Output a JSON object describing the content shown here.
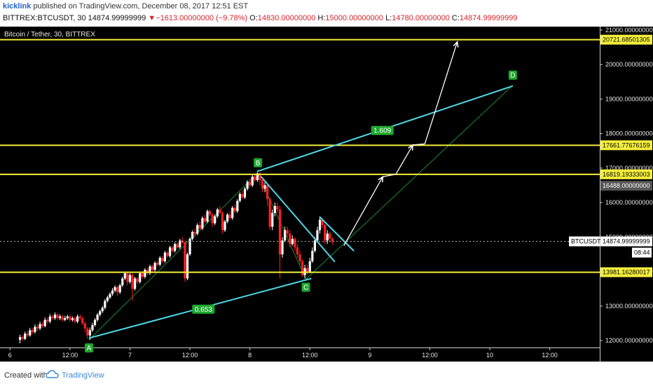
{
  "header": {
    "user": "kicklink",
    "publish_text": "published on TradingView.com, December 08, 2017 12:51 EST",
    "symbol": "BITTREX:BTCUSDT, 30",
    "last_price": "14874.99999999",
    "change_arrow": "▼",
    "change": "−1613.00000000 (−9.78%)",
    "o_label": "O:",
    "o_value": "14830.00000000",
    "h_label": "H:",
    "h_value": "15000.00000000",
    "l_label": "L:",
    "l_value": "14780.00000000",
    "c_label": "C:",
    "c_value": "14874.99999999"
  },
  "chart_data": {
    "type": "line",
    "title": "Bitcoin / Tether, 30, BITTREX",
    "xlabel": "",
    "ylabel": "",
    "ylim": [
      11800,
      21100
    ],
    "y_ticks": [
      12000,
      13000,
      14000,
      15000,
      16000,
      17000,
      18000,
      19000,
      20000,
      21000
    ],
    "y_tick_labels": [
      "12000.00000000",
      "13000.00000000",
      "14000.00000000",
      "15000.00000000",
      "16000.00000000",
      "17000.00000000",
      "18000.00000000",
      "19000.00000000",
      "20000.00000000",
      "21000.00000000"
    ],
    "x_ticks": [
      {
        "t": 0,
        "label": "6"
      },
      {
        "t": 12,
        "label": "12:00"
      },
      {
        "t": 24,
        "label": "7"
      },
      {
        "t": 36,
        "label": "12:00"
      },
      {
        "t": 48,
        "label": "8"
      },
      {
        "t": 60,
        "label": "12:00"
      },
      {
        "t": 72,
        "label": "9"
      },
      {
        "t": 84,
        "label": "12:00"
      },
      {
        "t": 96,
        "label": "10"
      },
      {
        "t": 108,
        "label": "12:00"
      }
    ],
    "xlim": [
      -2,
      118
    ],
    "colors": {
      "background": "#000000",
      "up": "#ffffff",
      "down": "#ff2020",
      "level": "#f4ee3c",
      "channel": "#4fd8e8",
      "pattern": "#1c8a2c",
      "arrow": "#ffffff",
      "label_bg": "#1ea82e"
    },
    "horizontal_levels": [
      {
        "value": 20721.68501305,
        "label": "20721.68501305"
      },
      {
        "value": 17661.77676159,
        "label": "17661.77676159"
      },
      {
        "value": 16819.19333003,
        "label": "16819.19333003"
      },
      {
        "value": 13981.16280017,
        "label": "13981.16280017"
      }
    ],
    "price_badges": [
      {
        "value": 16488,
        "label": "16488.00000000",
        "color": "#555555"
      },
      {
        "value": 14874.99999999,
        "label": "14874.99999999",
        "name": "BTCUSDT",
        "color": "#ffffff"
      }
    ],
    "countdown": "08:44",
    "points": [
      {
        "name": "A",
        "t": 15.8,
        "v": 12020
      },
      {
        "name": "B",
        "t": 49.6,
        "v": 16860
      },
      {
        "name": "C",
        "t": 59.2,
        "v": 13780
      },
      {
        "name": "D",
        "t": 100.6,
        "v": 19400
      }
    ],
    "channel_lines": [
      {
        "t1": 15.8,
        "v1": 12070,
        "t2": 60.3,
        "v2": 13800
      },
      {
        "t1": 49.4,
        "v1": 16900,
        "t2": 100.6,
        "v2": 19380
      },
      {
        "t1": 50.2,
        "v1": 16760,
        "t2": 65.0,
        "v2": 14280
      },
      {
        "t1": 62.0,
        "v1": 15580,
        "t2": 68.8,
        "v2": 14600
      }
    ],
    "pattern_lines": [
      {
        "t1": 15.8,
        "v1": 12020,
        "t2": 49.6,
        "v2": 16860
      },
      {
        "t1": 49.6,
        "v1": 16860,
        "t2": 59.2,
        "v2": 13780
      },
      {
        "t1": 59.2,
        "v1": 13780,
        "t2": 100.6,
        "v2": 19400
      }
    ],
    "fib_labels": [
      {
        "label": "0.653",
        "t": 38.7,
        "v": 12900
      },
      {
        "label": "1.609",
        "t": 74.5,
        "v": 18080
      }
    ],
    "arrow_path": [
      {
        "t": 66.8,
        "v": 14750
      },
      {
        "t": 74.6,
        "v": 16750
      },
      {
        "t": 77.2,
        "v": 16820
      },
      {
        "t": 80.6,
        "v": 17670
      },
      {
        "t": 83.0,
        "v": 17700
      },
      {
        "t": 89.5,
        "v": 20660
      }
    ],
    "candles": [
      [
        2.0,
        12020,
        12100,
        11920,
        12170
      ],
      [
        2.5,
        12100,
        12050,
        11990,
        12160
      ],
      [
        3.0,
        12050,
        12200,
        12010,
        12260
      ],
      [
        3.5,
        12200,
        12150,
        12100,
        12280
      ],
      [
        4.0,
        12150,
        12300,
        12110,
        12370
      ],
      [
        4.5,
        12300,
        12250,
        12200,
        12360
      ],
      [
        5.0,
        12250,
        12400,
        12200,
        12470
      ],
      [
        5.5,
        12400,
        12350,
        12290,
        12460
      ],
      [
        6.0,
        12350,
        12480,
        12300,
        12550
      ],
      [
        6.5,
        12480,
        12420,
        12370,
        12540
      ],
      [
        7.0,
        12420,
        12600,
        12380,
        12670
      ],
      [
        7.5,
        12600,
        12550,
        12490,
        12660
      ],
      [
        8.0,
        12550,
        12700,
        12500,
        12770
      ],
      [
        8.5,
        12700,
        12650,
        12590,
        12760
      ],
      [
        9.0,
        12650,
        12750,
        12600,
        12820
      ],
      [
        9.5,
        12750,
        12650,
        12580,
        12800
      ],
      [
        10.0,
        12650,
        12700,
        12590,
        12760
      ],
      [
        10.5,
        12700,
        12600,
        12550,
        12750
      ],
      [
        11.0,
        12600,
        12650,
        12560,
        12720
      ],
      [
        11.5,
        12650,
        12700,
        12600,
        12750
      ],
      [
        12.0,
        12700,
        12600,
        12540,
        12750
      ],
      [
        12.5,
        12600,
        12650,
        12550,
        12700
      ],
      [
        13.0,
        12650,
        12550,
        12500,
        12700
      ],
      [
        13.5,
        12550,
        12700,
        12500,
        12760
      ],
      [
        14.0,
        12700,
        12650,
        12580,
        12760
      ],
      [
        14.5,
        12650,
        12500,
        12450,
        12700
      ],
      [
        15.0,
        12500,
        12350,
        12250,
        12550
      ],
      [
        15.5,
        12350,
        12150,
        12050,
        12400
      ],
      [
        16.0,
        12150,
        12300,
        12020,
        12380
      ],
      [
        16.5,
        12300,
        12450,
        12250,
        12520
      ],
      [
        17.0,
        12450,
        12600,
        12400,
        12650
      ],
      [
        17.5,
        12600,
        12750,
        12550,
        12800
      ],
      [
        18.0,
        12750,
        12850,
        12700,
        12900
      ],
      [
        18.5,
        12850,
        12950,
        12800,
        13000
      ],
      [
        19.0,
        12950,
        13150,
        12900,
        13200
      ],
      [
        19.5,
        13150,
        13250,
        13100,
        13300
      ],
      [
        20.0,
        13250,
        13350,
        13200,
        13400
      ],
      [
        20.5,
        13350,
        13450,
        13300,
        13520
      ],
      [
        21.0,
        13450,
        13550,
        13400,
        13600
      ],
      [
        21.5,
        13550,
        13400,
        13300,
        13600
      ],
      [
        22.0,
        13400,
        13600,
        13350,
        13650
      ],
      [
        22.5,
        13600,
        13800,
        13550,
        13850
      ],
      [
        23.0,
        13800,
        13950,
        13750,
        14000
      ],
      [
        23.5,
        13950,
        13700,
        13600,
        14000
      ],
      [
        24.0,
        13700,
        13900,
        13650,
        13950
      ],
      [
        24.5,
        13900,
        13500,
        13150,
        13950
      ],
      [
        25.0,
        13500,
        13800,
        13450,
        13850
      ],
      [
        25.5,
        13800,
        13700,
        13650,
        13850
      ],
      [
        26.0,
        13700,
        13950,
        13650,
        14000
      ],
      [
        26.5,
        13950,
        13850,
        13800,
        14000
      ],
      [
        27.0,
        13850,
        14050,
        13800,
        14100
      ],
      [
        27.5,
        14050,
        13950,
        13900,
        14100
      ],
      [
        28.0,
        13950,
        14150,
        13900,
        14200
      ],
      [
        28.5,
        14150,
        14050,
        14000,
        14200
      ],
      [
        29.0,
        14050,
        14250,
        14000,
        14300
      ],
      [
        29.5,
        14250,
        14200,
        14150,
        14300
      ],
      [
        30.0,
        14200,
        14400,
        14150,
        14450
      ],
      [
        30.5,
        14400,
        14300,
        14250,
        14450
      ],
      [
        31.0,
        14300,
        14550,
        14250,
        14600
      ],
      [
        31.5,
        14550,
        14450,
        14400,
        14600
      ],
      [
        32.0,
        14450,
        14700,
        14400,
        14750
      ],
      [
        32.5,
        14700,
        14600,
        14550,
        14750
      ],
      [
        33.0,
        14600,
        14800,
        14550,
        14850
      ],
      [
        33.5,
        14800,
        14700,
        14650,
        14850
      ],
      [
        34.0,
        14700,
        14900,
        14650,
        14950
      ],
      [
        34.5,
        14900,
        14850,
        14800,
        15000
      ],
      [
        35.0,
        14850,
        13800,
        13700,
        14900
      ],
      [
        35.5,
        13800,
        14500,
        13750,
        14550
      ],
      [
        36.0,
        14500,
        14950,
        14450,
        15000
      ],
      [
        36.5,
        14950,
        15150,
        14900,
        15200
      ],
      [
        37.0,
        15150,
        15100,
        15000,
        15250
      ],
      [
        37.5,
        15100,
        15350,
        15050,
        15400
      ],
      [
        38.0,
        15350,
        15250,
        15200,
        15450
      ],
      [
        38.5,
        15250,
        15550,
        15200,
        15600
      ],
      [
        39.0,
        15550,
        15450,
        15400,
        15650
      ],
      [
        39.5,
        15450,
        15750,
        15400,
        15800
      ],
      [
        40.0,
        15750,
        15650,
        15600,
        15800
      ],
      [
        40.5,
        15650,
        15400,
        15300,
        15700
      ],
      [
        41.0,
        15400,
        15600,
        15350,
        15650
      ],
      [
        41.5,
        15600,
        15800,
        15550,
        15850
      ],
      [
        42.0,
        15800,
        15700,
        15650,
        15900
      ],
      [
        42.5,
        15700,
        15200,
        15100,
        15750
      ],
      [
        43.0,
        15200,
        15450,
        15150,
        15500
      ],
      [
        43.5,
        15450,
        15650,
        15400,
        15700
      ],
      [
        44.0,
        15650,
        15550,
        15500,
        15750
      ],
      [
        44.5,
        15550,
        15850,
        15500,
        15900
      ],
      [
        45.0,
        15850,
        15750,
        15700,
        15950
      ],
      [
        45.5,
        15750,
        16050,
        15700,
        16100
      ],
      [
        46.0,
        16050,
        16250,
        16000,
        16300
      ],
      [
        46.5,
        16250,
        16150,
        16100,
        16350
      ],
      [
        47.0,
        16150,
        16400,
        16100,
        16450
      ],
      [
        47.5,
        16400,
        16600,
        16350,
        16650
      ],
      [
        48.0,
        16600,
        16500,
        16450,
        16700
      ],
      [
        48.5,
        16500,
        16750,
        16450,
        16800
      ],
      [
        49.0,
        16750,
        16650,
        16600,
        16850
      ],
      [
        49.5,
        16650,
        16850,
        16600,
        16870
      ],
      [
        50.0,
        16850,
        16650,
        16500,
        16880
      ],
      [
        50.5,
        16650,
        16400,
        16300,
        16700
      ],
      [
        51.0,
        16400,
        16500,
        16300,
        16600
      ],
      [
        51.5,
        16500,
        16100,
        15900,
        16550
      ],
      [
        52.0,
        16100,
        15300,
        15200,
        16150
      ],
      [
        52.5,
        15300,
        15700,
        15200,
        15800
      ],
      [
        53.0,
        15700,
        15900,
        15600,
        16000
      ],
      [
        53.5,
        15900,
        15800,
        15700,
        16000
      ],
      [
        54.0,
        15800,
        14500,
        13800,
        15900
      ],
      [
        54.5,
        14500,
        14900,
        14400,
        15000
      ],
      [
        55.0,
        14900,
        15200,
        14850,
        15300
      ],
      [
        55.5,
        15200,
        15100,
        15000,
        15300
      ],
      [
        56.0,
        15100,
        14800,
        14700,
        15200
      ],
      [
        56.5,
        14800,
        14950,
        14750,
        15050
      ],
      [
        57.0,
        14950,
        14700,
        14600,
        15000
      ],
      [
        57.5,
        14700,
        14500,
        14400,
        14800
      ],
      [
        58.0,
        14500,
        14300,
        14200,
        14600
      ],
      [
        58.5,
        14300,
        13900,
        13850,
        14350
      ],
      [
        59.0,
        13900,
        14100,
        13800,
        14200
      ],
      [
        59.5,
        14100,
        14000,
        13900,
        14200
      ],
      [
        60.0,
        14000,
        14300,
        13950,
        14400
      ],
      [
        60.5,
        14300,
        14600,
        14250,
        14700
      ],
      [
        61.0,
        14600,
        14900,
        14550,
        15000
      ],
      [
        61.5,
        14900,
        15200,
        14850,
        15300
      ],
      [
        62.0,
        15200,
        15500,
        15100,
        15600
      ],
      [
        62.5,
        15500,
        15350,
        15250,
        15550
      ],
      [
        63.0,
        15350,
        14900,
        14800,
        15400
      ],
      [
        63.5,
        14900,
        15100,
        14800,
        15200
      ],
      [
        64.0,
        15100,
        14950,
        14850,
        15150
      ],
      [
        64.5,
        14950,
        14875,
        14780,
        15000
      ]
    ]
  },
  "footer": {
    "created_with": "Created with",
    "brand": "TradingView"
  }
}
